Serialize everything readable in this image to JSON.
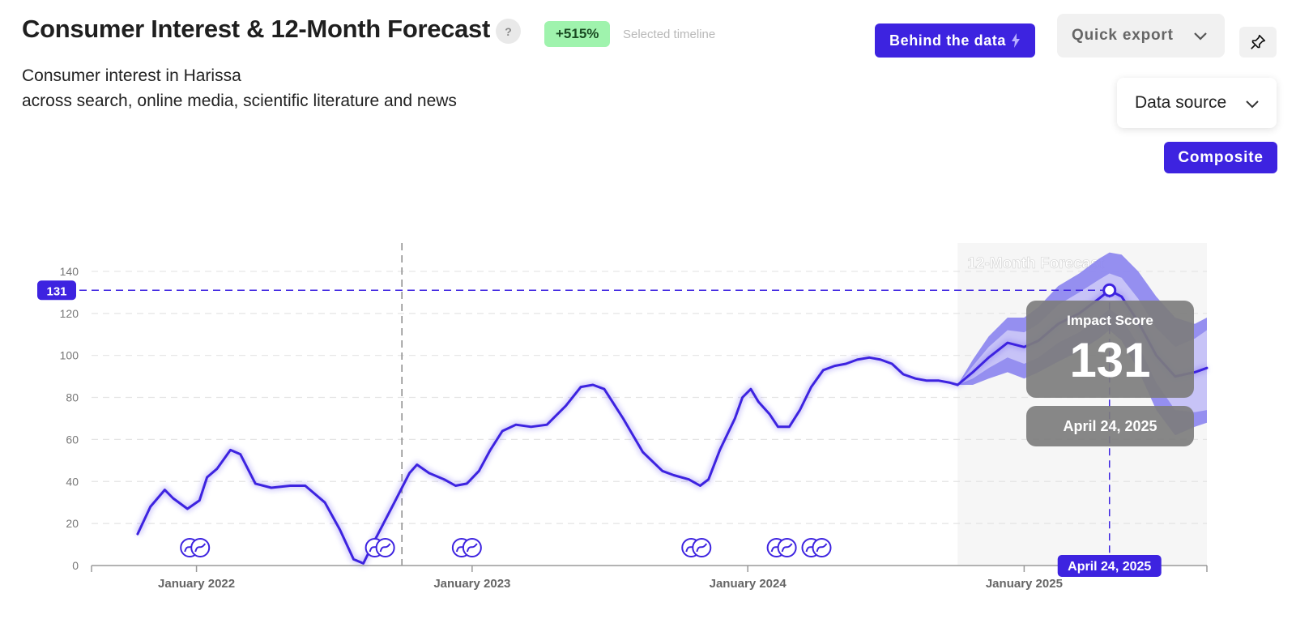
{
  "header": {
    "title": "Consumer Interest & 12-Month Forecast",
    "help_label": "?",
    "growth_badge": "+515%",
    "growth_caption": "Selected timeline",
    "subtitle_line1": "Consumer interest in Harissa",
    "subtitle_line2": "across search, online media, scientific literature and news"
  },
  "toolbar": {
    "behind_data_label": "Behind the data",
    "quick_export_label": "Quick export",
    "pin_icon": "pin-icon",
    "data_source_label": "Data source",
    "composite_label": "Composite"
  },
  "colors": {
    "accent": "#3d23e0",
    "badge_bg": "#9ff3ad",
    "forecast_band_outer": "#8b84f0",
    "forecast_band_inner": "#c9c6f7",
    "tooltip_bg": "#7d7d7d"
  },
  "chart_data": {
    "type": "line",
    "x_axis": {
      "type": "date",
      "range": [
        "2021-08-15",
        "2025-08-31"
      ],
      "ticks": [
        "January 2022",
        "January 2023",
        "January 2024",
        "January 2025"
      ]
    },
    "y_axis": {
      "range": [
        0,
        150
      ],
      "ticks": [
        0,
        20,
        40,
        60,
        80,
        100,
        120,
        140
      ]
    },
    "grid": "horizontal dashed",
    "series": [
      {
        "name": "",
        "points": [
          [
            "2021-10-15",
            15
          ],
          [
            "2021-11-01",
            28
          ],
          [
            "2021-11-20",
            36
          ],
          [
            "2021-12-01",
            32
          ],
          [
            "2021-12-20",
            27
          ],
          [
            "2022-01-05",
            31
          ],
          [
            "2022-01-15",
            42
          ],
          [
            "2022-01-28",
            46
          ],
          [
            "2022-02-15",
            55
          ],
          [
            "2022-02-28",
            53
          ],
          [
            "2022-03-20",
            39
          ],
          [
            "2022-04-10",
            37
          ],
          [
            "2022-05-05",
            38
          ],
          [
            "2022-05-25",
            38
          ],
          [
            "2022-06-20",
            30
          ],
          [
            "2022-07-10",
            17
          ],
          [
            "2022-07-28",
            3
          ],
          [
            "2022-08-10",
            1
          ],
          [
            "2022-08-25",
            12
          ],
          [
            "2022-09-20",
            30
          ],
          [
            "2022-10-10",
            44
          ],
          [
            "2022-10-20",
            48
          ],
          [
            "2022-11-05",
            44
          ],
          [
            "2022-11-25",
            41
          ],
          [
            "2022-12-10",
            38
          ],
          [
            "2022-12-25",
            39
          ],
          [
            "2023-01-10",
            45
          ],
          [
            "2023-01-25",
            55
          ],
          [
            "2023-02-10",
            64
          ],
          [
            "2023-02-28",
            67
          ],
          [
            "2023-03-20",
            66
          ],
          [
            "2023-04-10",
            67
          ],
          [
            "2023-05-05",
            76
          ],
          [
            "2023-05-25",
            85
          ],
          [
            "2023-06-10",
            86
          ],
          [
            "2023-06-25",
            84
          ],
          [
            "2023-07-20",
            70
          ],
          [
            "2023-08-15",
            54
          ],
          [
            "2023-09-10",
            45
          ],
          [
            "2023-09-25",
            43
          ],
          [
            "2023-10-15",
            41
          ],
          [
            "2023-10-30",
            38
          ],
          [
            "2023-11-10",
            41
          ],
          [
            "2023-11-25",
            55
          ],
          [
            "2023-12-15",
            70
          ],
          [
            "2023-12-25",
            80
          ],
          [
            "2024-01-05",
            84
          ],
          [
            "2024-01-15",
            78
          ],
          [
            "2024-01-30",
            72
          ],
          [
            "2024-02-10",
            66
          ],
          [
            "2024-02-25",
            66
          ],
          [
            "2024-03-10",
            74
          ],
          [
            "2024-03-25",
            85
          ],
          [
            "2024-04-10",
            93
          ],
          [
            "2024-04-25",
            95
          ],
          [
            "2024-05-10",
            96
          ],
          [
            "2024-05-25",
            98
          ],
          [
            "2024-06-10",
            99
          ],
          [
            "2024-06-25",
            98
          ],
          [
            "2024-07-10",
            96
          ],
          [
            "2024-07-25",
            91
          ],
          [
            "2024-08-10",
            89
          ],
          [
            "2024-08-25",
            88
          ],
          [
            "2024-09-10",
            88
          ],
          [
            "2024-09-25",
            87
          ],
          [
            "2024-10-05",
            86
          ]
        ]
      },
      {
        "name": "12-Month Forecast",
        "points": [
          [
            "2024-10-05",
            86
          ],
          [
            "2024-10-25",
            92
          ],
          [
            "2024-11-15",
            99
          ],
          [
            "2024-12-10",
            106
          ],
          [
            "2025-01-01",
            104
          ],
          [
            "2025-01-20",
            107
          ],
          [
            "2025-02-15",
            115
          ],
          [
            "2025-03-15",
            120
          ],
          [
            "2025-04-10",
            127
          ],
          [
            "2025-04-24",
            131
          ],
          [
            "2025-05-10",
            128
          ],
          [
            "2025-06-01",
            116
          ],
          [
            "2025-06-25",
            100
          ],
          [
            "2025-07-20",
            90
          ],
          [
            "2025-08-15",
            92
          ],
          [
            "2025-08-31",
            94
          ]
        ],
        "band_inner": [
          [
            86,
            86
          ],
          [
            89,
            95
          ],
          [
            94,
            104
          ],
          [
            99,
            112
          ],
          [
            96,
            111
          ],
          [
            99,
            115
          ],
          [
            106,
            124
          ],
          [
            111,
            130
          ],
          [
            118,
            136
          ],
          [
            122,
            139
          ],
          [
            118,
            137
          ],
          [
            105,
            127
          ],
          [
            87,
            113
          ],
          [
            74,
            104
          ],
          [
            73,
            108
          ],
          [
            74,
            112
          ]
        ],
        "band_outer": [
          [
            86,
            86
          ],
          [
            86,
            98
          ],
          [
            89,
            109
          ],
          [
            92,
            118
          ],
          [
            89,
            118
          ],
          [
            92,
            123
          ],
          [
            97,
            133
          ],
          [
            102,
            139
          ],
          [
            108,
            146
          ],
          [
            112,
            149
          ],
          [
            107,
            148
          ],
          [
            93,
            140
          ],
          [
            74,
            128
          ],
          [
            62,
            118
          ],
          [
            66,
            115
          ],
          [
            68,
            118
          ]
        ]
      }
    ],
    "forecast_start": "2024-10-05",
    "forecast_label": "12-Month Forecast",
    "selected_point": {
      "date": "2025-04-24",
      "value": 131,
      "date_label": "April 24, 2025",
      "value_label": "131"
    },
    "timeline_marker_date": "2022-09-30",
    "tooltip": {
      "title": "Impact Score",
      "value": "131",
      "date": "April 24, 2025"
    },
    "event_markers": [
      {
        "date": "2021-12-30",
        "count": 2
      },
      {
        "date": "2022-09-01",
        "count": 2
      },
      {
        "date": "2022-12-25",
        "count": 2
      },
      {
        "date": "2023-10-25",
        "count": 2
      },
      {
        "date": "2024-02-15",
        "count": 2
      },
      {
        "date": "2024-04-01",
        "count": 2
      }
    ]
  }
}
